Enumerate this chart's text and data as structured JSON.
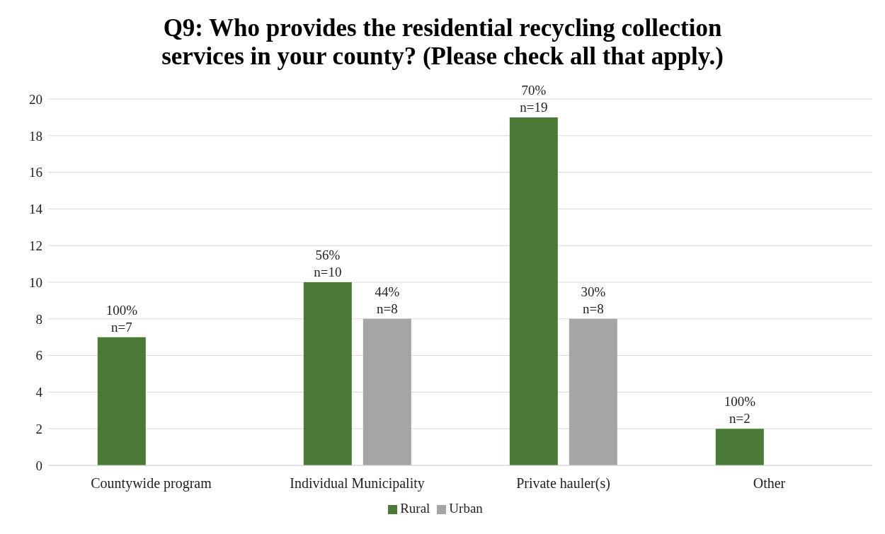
{
  "chart_data": {
    "type": "bar",
    "title": "Q9: Who provides the residential recycling collection services in your county? (Please check all that apply.)",
    "categories": [
      "Countywide program",
      "Individual Municipality",
      "Private hauler(s)",
      "Other"
    ],
    "series": [
      {
        "name": "Rural",
        "color": "#4a7a35",
        "values": [
          7,
          10,
          19,
          2
        ],
        "value_labels": [
          "100%\nn=7",
          "56%\nn=10",
          "70%\nn=19",
          "100%\nn=2"
        ]
      },
      {
        "name": "Urban",
        "color": "#a5a5a5",
        "values": [
          null,
          8,
          8,
          null
        ],
        "value_labels": [
          null,
          "44%\nn=8",
          "30%\nn=8",
          null
        ]
      }
    ],
    "ylim": [
      0,
      20
    ],
    "yticks": [
      0,
      2,
      4,
      6,
      8,
      10,
      12,
      14,
      16,
      18,
      20
    ],
    "grid": "y",
    "legend": "bottom"
  }
}
